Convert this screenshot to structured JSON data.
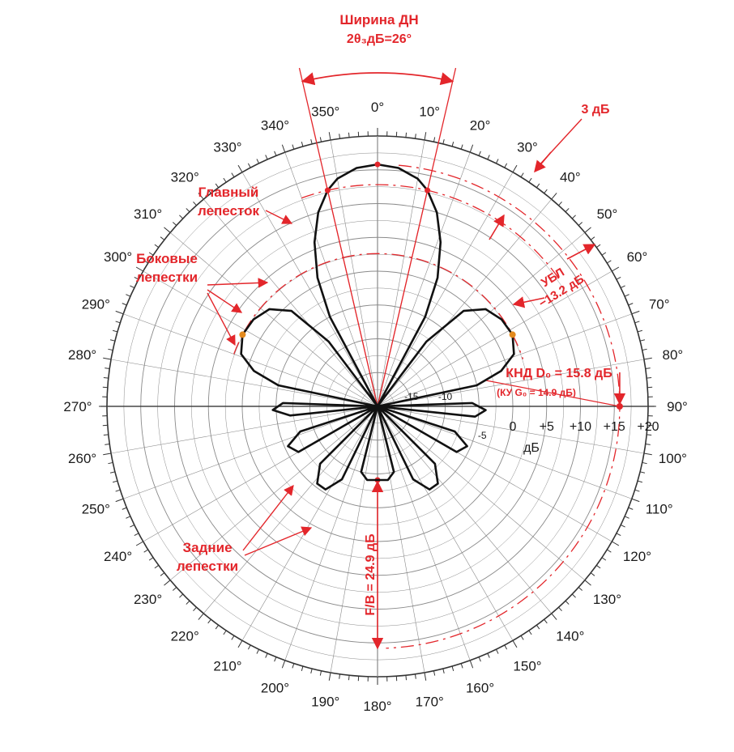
{
  "chart_data": {
    "type": "polar",
    "angle_unit": "deg",
    "angle_direction": "clockwise",
    "angle_zero": "top",
    "radial_unit": "dB",
    "radial_range": [
      -20,
      20
    ],
    "grid": true,
    "angle_ticks": [
      "0°",
      "10°",
      "20°",
      "30°",
      "40°",
      "50°",
      "60°",
      "70°",
      "80°",
      "90°",
      "100°",
      "110°",
      "120°",
      "130°",
      "140°",
      "150°",
      "160°",
      "170°",
      "180°",
      "190°",
      "200°",
      "210°",
      "220°",
      "230°",
      "240°",
      "250°",
      "260°",
      "270°",
      "280°",
      "290°",
      "300°",
      "310°",
      "320°",
      "330°",
      "340°",
      "350°"
    ],
    "radial_ticks_outer": [
      "0",
      "+5",
      "+10",
      "+15",
      "+20"
    ],
    "radial_ticks_inner": [
      "-15",
      "-10",
      "-5"
    ],
    "radial_unit_label": "дБ",
    "main_lobe": {
      "peak_db": 15.8,
      "halfpower_db": 12.8,
      "beamwidth_deg": 26
    },
    "side_lobes": {
      "level_db": 2.6,
      "angles_deg": [
        62,
        298
      ]
    },
    "back_lobe": {
      "level_db": -9.1,
      "angle_deg": 180
    },
    "pattern": [
      {
        "angle": 0,
        "db": 15.8
      },
      {
        "angle": 5,
        "db": 15.4
      },
      {
        "angle": 10,
        "db": 14.2
      },
      {
        "angle": 13,
        "db": 12.8
      },
      {
        "angle": 17,
        "db": 10.0
      },
      {
        "angle": 21,
        "db": 6.0
      },
      {
        "angle": 25,
        "db": 1.0
      },
      {
        "angle": 28,
        "db": -5.0
      },
      {
        "angle": 30,
        "db": -20.0
      },
      {
        "angle": 33,
        "db": -20.0
      },
      {
        "angle": 37,
        "db": -8.0
      },
      {
        "angle": 42,
        "db": -1.0
      },
      {
        "angle": 48,
        "db": 1.5
      },
      {
        "angle": 55,
        "db": 2.4
      },
      {
        "angle": 62,
        "db": 2.6
      },
      {
        "angle": 69,
        "db": 1.6
      },
      {
        "angle": 74,
        "db": -1.0
      },
      {
        "angle": 78,
        "db": -5.0
      },
      {
        "angle": 82,
        "db": -20.0
      },
      {
        "angle": 85,
        "db": -20.0
      },
      {
        "angle": 88,
        "db": -6.0
      },
      {
        "angle": 92,
        "db": -4.0
      },
      {
        "angle": 96,
        "db": -5.5
      },
      {
        "angle": 100,
        "db": -20.0
      },
      {
        "angle": 104,
        "db": -20.0
      },
      {
        "angle": 108,
        "db": -8.0
      },
      {
        "angle": 114,
        "db": -5.5
      },
      {
        "angle": 120,
        "db": -6.5
      },
      {
        "angle": 126,
        "db": -20.0
      },
      {
        "angle": 130,
        "db": -20.0
      },
      {
        "angle": 135,
        "db": -8.0
      },
      {
        "angle": 142,
        "db": -5.5
      },
      {
        "angle": 148,
        "db": -5.5
      },
      {
        "angle": 154,
        "db": -8.0
      },
      {
        "angle": 158,
        "db": -20.0
      },
      {
        "angle": 162,
        "db": -20.0
      },
      {
        "angle": 166,
        "db": -10.0
      },
      {
        "angle": 172,
        "db": -9.0
      },
      {
        "angle": 180,
        "db": -9.1
      },
      {
        "angle": 188,
        "db": -9.0
      },
      {
        "angle": 194,
        "db": -10.0
      },
      {
        "angle": 198,
        "db": -20.0
      },
      {
        "angle": 202,
        "db": -20.0
      },
      {
        "angle": 206,
        "db": -8.0
      },
      {
        "angle": 212,
        "db": -5.5
      },
      {
        "angle": 218,
        "db": -5.5
      },
      {
        "angle": 225,
        "db": -8.0
      },
      {
        "angle": 230,
        "db": -20.0
      },
      {
        "angle": 234,
        "db": -20.0
      },
      {
        "angle": 240,
        "db": -6.5
      },
      {
        "angle": 246,
        "db": -5.5
      },
      {
        "angle": 252,
        "db": -8.0
      },
      {
        "angle": 256,
        "db": -20.0
      },
      {
        "angle": 260,
        "db": -20.0
      },
      {
        "angle": 264,
        "db": -7.0
      },
      {
        "angle": 268,
        "db": -4.5
      },
      {
        "angle": 272,
        "db": -6.0
      },
      {
        "angle": 275,
        "db": -20.0
      },
      {
        "angle": 278,
        "db": -20.0
      },
      {
        "angle": 282,
        "db": -5.0
      },
      {
        "angle": 286,
        "db": -1.0
      },
      {
        "angle": 291,
        "db": 1.6
      },
      {
        "angle": 298,
        "db": 2.6
      },
      {
        "angle": 305,
        "db": 2.4
      },
      {
        "angle": 312,
        "db": 1.5
      },
      {
        "angle": 318,
        "db": -1.0
      },
      {
        "angle": 323,
        "db": -8.0
      },
      {
        "angle": 327,
        "db": -20.0
      },
      {
        "angle": 330,
        "db": -20.0
      },
      {
        "angle": 332,
        "db": -5.0
      },
      {
        "angle": 335,
        "db": 1.0
      },
      {
        "angle": 339,
        "db": 6.0
      },
      {
        "angle": 343,
        "db": 10.0
      },
      {
        "angle": 347,
        "db": 12.8
      },
      {
        "angle": 350,
        "db": 14.2
      },
      {
        "angle": 355,
        "db": 15.4
      }
    ]
  },
  "annotations": {
    "beamwidth_title": "Ширина ДН",
    "beamwidth_value": "2θ₃дБ=26°",
    "db3": "3 дБ",
    "main_lobe_line1": "Главный",
    "main_lobe_line2": "лепесток",
    "side_lobes_line1": "Боковые",
    "side_lobes_line2": "лепестки",
    "sll_label": "УБЛ",
    "sll_value": "−13.2 дБ",
    "dir_text": "КНД D₀ = 15.8 дБ",
    "gain_text": "(КУ G₀ = 14.9 дБ)",
    "back_lobes_line1": "Задние",
    "back_lobes_line2": "лепестки",
    "fb_text": "F/B = 24.9 дБ"
  },
  "colors": {
    "accent": "#e3262b",
    "pattern": "#111111",
    "grid": "#8a8a8a",
    "marker": "#e38a1e"
  }
}
